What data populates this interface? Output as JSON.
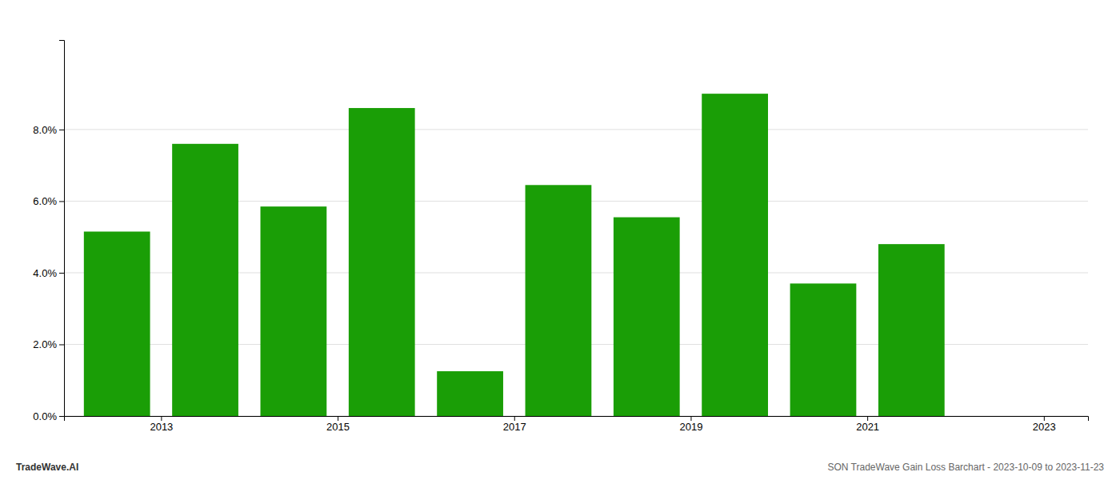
{
  "chart_data": {
    "type": "bar",
    "x": [
      2013,
      2014,
      2015,
      2016,
      2017,
      2018,
      2019,
      2020,
      2021,
      2022
    ],
    "values": [
      0.0515,
      0.076,
      0.0585,
      0.086,
      0.0125,
      0.0645,
      0.0555,
      0.09,
      0.037,
      0.048
    ],
    "color": "#1a9e06",
    "xlim": [
      2012.4,
      2024.0
    ],
    "xticks": [
      {
        "value": 2013.5,
        "label": "2013"
      },
      {
        "value": 2015.5,
        "label": "2015"
      },
      {
        "value": 2017.5,
        "label": "2017"
      },
      {
        "value": 2019.5,
        "label": "2019"
      },
      {
        "value": 2021.5,
        "label": "2021"
      },
      {
        "value": 2023.5,
        "label": "2023"
      }
    ],
    "ylim": [
      0,
      0.105
    ],
    "yticks": [
      {
        "value": 0.0,
        "label": "0.0%"
      },
      {
        "value": 0.02,
        "label": "2.0%"
      },
      {
        "value": 0.04,
        "label": "4.0%"
      },
      {
        "value": 0.06,
        "label": "6.0%"
      },
      {
        "value": 0.08,
        "label": "8.0%"
      }
    ],
    "grid": true,
    "annotations": [
      "TradeWave.AI",
      "SON TradeWave Gain Loss Barchart - 2023-10-09 to 2023-11-23"
    ]
  }
}
